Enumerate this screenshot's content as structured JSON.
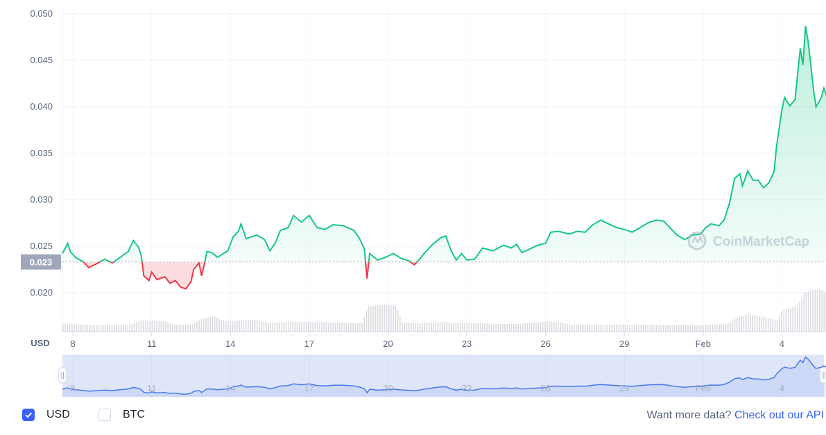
{
  "chart_data": {
    "type": "area",
    "currency_label": "USD",
    "y_ticks": [
      "0.020",
      "0.025",
      "0.030",
      "0.035",
      "0.040",
      "0.045",
      "0.050"
    ],
    "ylim": [
      0.0158,
      0.0509
    ],
    "reference": {
      "value": 0.0233,
      "label": "0.023"
    },
    "x_ticks": [
      {
        "day": 8,
        "label": "8"
      },
      {
        "day": 11,
        "label": "11"
      },
      {
        "day": 14,
        "label": "14"
      },
      {
        "day": 17,
        "label": "17"
      },
      {
        "day": 20,
        "label": "20"
      },
      {
        "day": 23,
        "label": "23"
      },
      {
        "day": 26,
        "label": "26"
      },
      {
        "day": 29,
        "label": "29"
      },
      {
        "day": 32,
        "label": "Feb"
      },
      {
        "day": 35,
        "label": "4"
      }
    ],
    "x_range_days": [
      7.6,
      36.6
    ],
    "price": [
      [
        7.6,
        0.0242
      ],
      [
        7.8,
        0.0253
      ],
      [
        7.9,
        0.0244
      ],
      [
        8.1,
        0.0238
      ],
      [
        8.4,
        0.0233
      ],
      [
        8.6,
        0.0227
      ],
      [
        8.9,
        0.0231
      ],
      [
        9.2,
        0.0236
      ],
      [
        9.5,
        0.0232
      ],
      [
        9.8,
        0.0238
      ],
      [
        10.1,
        0.0244
      ],
      [
        10.3,
        0.0256
      ],
      [
        10.5,
        0.0249
      ],
      [
        10.6,
        0.024
      ],
      [
        10.7,
        0.0218
      ],
      [
        10.9,
        0.0213
      ],
      [
        11.0,
        0.0222
      ],
      [
        11.2,
        0.0214
      ],
      [
        11.5,
        0.0217
      ],
      [
        11.7,
        0.021
      ],
      [
        11.9,
        0.0213
      ],
      [
        12.1,
        0.0206
      ],
      [
        12.3,
        0.0204
      ],
      [
        12.5,
        0.0212
      ],
      [
        12.6,
        0.0225
      ],
      [
        12.8,
        0.0232
      ],
      [
        12.9,
        0.0218
      ],
      [
        13.0,
        0.023
      ],
      [
        13.1,
        0.0244
      ],
      [
        13.3,
        0.0243
      ],
      [
        13.5,
        0.0238
      ],
      [
        13.9,
        0.0245
      ],
      [
        14.1,
        0.026
      ],
      [
        14.3,
        0.0266
      ],
      [
        14.4,
        0.0274
      ],
      [
        14.6,
        0.0258
      ],
      [
        15.0,
        0.0262
      ],
      [
        15.3,
        0.0257
      ],
      [
        15.5,
        0.0245
      ],
      [
        15.7,
        0.0253
      ],
      [
        15.9,
        0.0267
      ],
      [
        16.2,
        0.027
      ],
      [
        16.4,
        0.0283
      ],
      [
        16.7,
        0.0276
      ],
      [
        17.0,
        0.0283
      ],
      [
        17.3,
        0.027
      ],
      [
        17.6,
        0.0268
      ],
      [
        17.9,
        0.0273
      ],
      [
        18.3,
        0.0272
      ],
      [
        18.7,
        0.0267
      ],
      [
        18.9,
        0.0259
      ],
      [
        19.1,
        0.0247
      ],
      [
        19.2,
        0.0215
      ],
      [
        19.3,
        0.0242
      ],
      [
        19.6,
        0.0235
      ],
      [
        19.9,
        0.0238
      ],
      [
        20.2,
        0.0242
      ],
      [
        20.5,
        0.0237
      ],
      [
        20.8,
        0.0234
      ],
      [
        21.0,
        0.023
      ],
      [
        21.2,
        0.0236
      ],
      [
        21.4,
        0.0243
      ],
      [
        21.7,
        0.0252
      ],
      [
        22.0,
        0.0259
      ],
      [
        22.2,
        0.0261
      ],
      [
        22.4,
        0.0245
      ],
      [
        22.6,
        0.0235
      ],
      [
        22.8,
        0.0242
      ],
      [
        23.0,
        0.0235
      ],
      [
        23.3,
        0.0236
      ],
      [
        23.6,
        0.0248
      ],
      [
        24.0,
        0.0245
      ],
      [
        24.4,
        0.0251
      ],
      [
        24.7,
        0.0248
      ],
      [
        24.9,
        0.0252
      ],
      [
        25.1,
        0.0243
      ],
      [
        25.4,
        0.0247
      ],
      [
        25.7,
        0.0251
      ],
      [
        26.0,
        0.0253
      ],
      [
        26.2,
        0.0265
      ],
      [
        26.5,
        0.0266
      ],
      [
        26.9,
        0.0263
      ],
      [
        27.2,
        0.0266
      ],
      [
        27.5,
        0.0265
      ],
      [
        27.8,
        0.0273
      ],
      [
        28.1,
        0.0278
      ],
      [
        28.4,
        0.0274
      ],
      [
        28.7,
        0.027
      ],
      [
        29.0,
        0.0268
      ],
      [
        29.3,
        0.0265
      ],
      [
        29.6,
        0.027
      ],
      [
        29.9,
        0.0275
      ],
      [
        30.2,
        0.0278
      ],
      [
        30.5,
        0.0277
      ],
      [
        30.8,
        0.0268
      ],
      [
        31.0,
        0.0262
      ],
      [
        31.3,
        0.0257
      ],
      [
        31.6,
        0.0262
      ],
      [
        31.9,
        0.0263
      ],
      [
        32.1,
        0.027
      ],
      [
        32.3,
        0.0274
      ],
      [
        32.6,
        0.0272
      ],
      [
        32.8,
        0.0278
      ],
      [
        33.0,
        0.0296
      ],
      [
        33.2,
        0.0323
      ],
      [
        33.4,
        0.0328
      ],
      [
        33.5,
        0.0315
      ],
      [
        33.7,
        0.0331
      ],
      [
        33.9,
        0.0321
      ],
      [
        34.1,
        0.0321
      ],
      [
        34.3,
        0.0313
      ],
      [
        34.5,
        0.0318
      ],
      [
        34.7,
        0.033
      ],
      [
        34.8,
        0.0358
      ],
      [
        35.0,
        0.0397
      ],
      [
        35.1,
        0.041
      ],
      [
        35.3,
        0.0401
      ],
      [
        35.5,
        0.0408
      ],
      [
        35.7,
        0.0463
      ],
      [
        35.8,
        0.0445
      ],
      [
        35.9,
        0.0487
      ],
      [
        36.0,
        0.047
      ],
      [
        36.1,
        0.0445
      ],
      [
        36.2,
        0.0419
      ],
      [
        36.3,
        0.04
      ],
      [
        36.5,
        0.041
      ],
      [
        36.6,
        0.042
      ],
      [
        36.75,
        0.0408
      ],
      [
        36.9,
        0.04
      ],
      [
        37.0,
        0.0386
      ],
      [
        37.1,
        0.0395
      ],
      [
        37.3,
        0.0392
      ]
    ],
    "volume": [
      [
        7.6,
        0.1
      ],
      [
        8.0,
        0.09
      ],
      [
        8.5,
        0.08
      ],
      [
        9.5,
        0.08
      ],
      [
        10.2,
        0.09
      ],
      [
        10.5,
        0.14
      ],
      [
        11.0,
        0.14
      ],
      [
        11.5,
        0.13
      ],
      [
        11.8,
        0.09
      ],
      [
        12.5,
        0.09
      ],
      [
        12.8,
        0.15
      ],
      [
        13.0,
        0.18
      ],
      [
        13.4,
        0.2
      ],
      [
        13.6,
        0.15
      ],
      [
        14.0,
        0.13
      ],
      [
        14.5,
        0.15
      ],
      [
        15.0,
        0.15
      ],
      [
        15.5,
        0.11
      ],
      [
        16.0,
        0.12
      ],
      [
        17.0,
        0.12
      ],
      [
        18.0,
        0.11
      ],
      [
        19.0,
        0.1
      ],
      [
        19.2,
        0.3
      ],
      [
        19.5,
        0.31
      ],
      [
        19.9,
        0.32
      ],
      [
        20.3,
        0.3
      ],
      [
        20.5,
        0.11
      ],
      [
        21.0,
        0.1
      ],
      [
        22.0,
        0.11
      ],
      [
        23.0,
        0.1
      ],
      [
        24.0,
        0.09
      ],
      [
        25.0,
        0.09
      ],
      [
        26.0,
        0.12
      ],
      [
        26.5,
        0.11
      ],
      [
        27.0,
        0.08
      ],
      [
        28.0,
        0.08
      ],
      [
        29.0,
        0.08
      ],
      [
        30.0,
        0.08
      ],
      [
        31.0,
        0.08
      ],
      [
        32.0,
        0.08
      ],
      [
        32.9,
        0.1
      ],
      [
        33.3,
        0.18
      ],
      [
        33.7,
        0.22
      ],
      [
        34.1,
        0.2
      ],
      [
        34.5,
        0.17
      ],
      [
        34.8,
        0.15
      ],
      [
        35.0,
        0.28
      ],
      [
        35.3,
        0.3
      ],
      [
        35.6,
        0.36
      ],
      [
        35.8,
        0.5
      ],
      [
        36.1,
        0.54
      ],
      [
        36.4,
        0.55
      ],
      [
        36.7,
        0.5
      ],
      [
        36.9,
        0.4
      ],
      [
        37.1,
        0.2
      ],
      [
        37.3,
        0.18
      ]
    ],
    "colors": {
      "up": "#16c784",
      "down": "#ea3943",
      "navigator_line": "#4878f0",
      "volume": "#d9dbe0",
      "reference_label_bg": "#a1a7bb"
    }
  },
  "watermark": "CoinMarketCap",
  "options": [
    {
      "label": "USD",
      "checked": true
    },
    {
      "label": "BTC",
      "checked": false
    }
  ],
  "footer": {
    "prompt": "Want more data?",
    "link": "Check out our API"
  }
}
